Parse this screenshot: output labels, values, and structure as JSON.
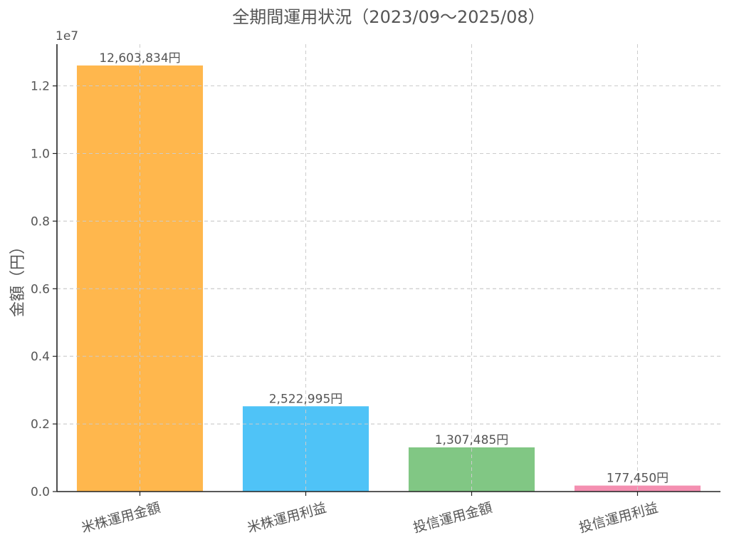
{
  "chart_data": {
    "type": "bar",
    "title": "全期間運用状況（2023/09〜2025/08）",
    "ylabel": "金額（円）",
    "xlabel": "",
    "y_offset_label": "1e7",
    "y_scale": 10000000,
    "ylim": [
      0,
      13234026
    ],
    "yticks": [
      0,
      2000000,
      4000000,
      6000000,
      8000000,
      10000000,
      12000000
    ],
    "ytick_labels": [
      "0.0",
      "0.2",
      "0.4",
      "0.6",
      "0.8",
      "1.0",
      "1.2"
    ],
    "grid": true,
    "categories": [
      "米株運用金額",
      "米株運用利益",
      "投信運用金額",
      "投信運用利益"
    ],
    "values": [
      12603834,
      2522995,
      1307485,
      177450
    ],
    "data_labels": [
      "12,603,834円",
      "2,522,995円",
      "1,307,485円",
      "177,450円"
    ],
    "colors": [
      "#FFB74D",
      "#4FC3F7",
      "#81C784",
      "#F48FB1"
    ]
  }
}
